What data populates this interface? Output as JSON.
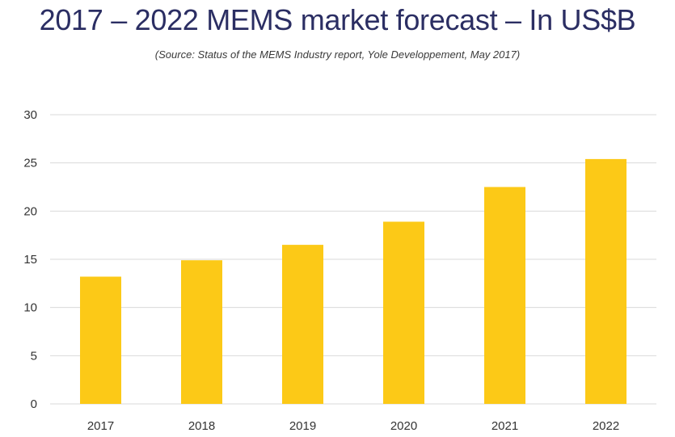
{
  "chart_data": {
    "type": "bar",
    "title": "2017 – 2022 MEMS market forecast – In US$B",
    "subtitle": "(Source: Status of the MEMS Industry report, Yole Developpement, May 2017)",
    "categories": [
      "2017",
      "2018",
      "2019",
      "2020",
      "2021",
      "2022"
    ],
    "values": [
      13.2,
      14.9,
      16.5,
      18.9,
      22.5,
      25.4
    ],
    "xlabel": "",
    "ylabel": "",
    "ylim": [
      0,
      30
    ],
    "yticks": [
      0,
      5,
      10,
      15,
      20,
      25,
      30
    ],
    "grid": true,
    "legend": "none",
    "bar_color": "#fcc917",
    "grid_color": "#d9d9d9"
  }
}
